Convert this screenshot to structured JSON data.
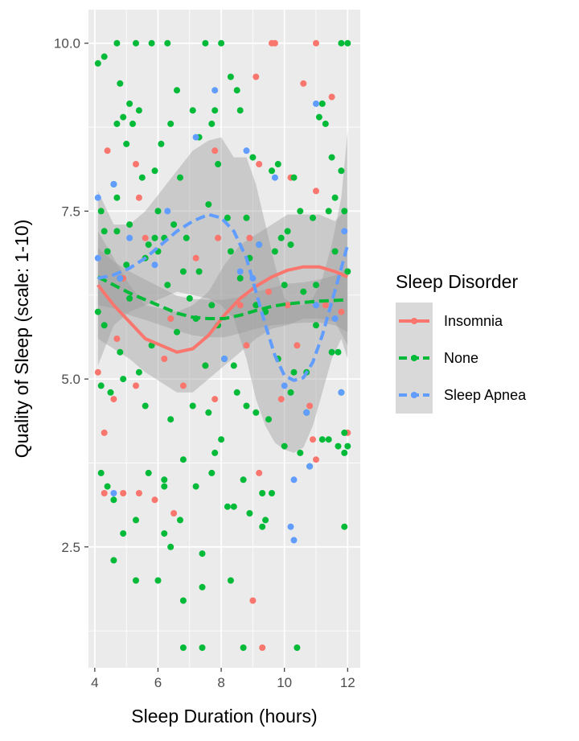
{
  "chart_data": {
    "type": "scatter",
    "title": "",
    "xlabel": "Sleep Duration (hours)",
    "ylabel": "Quality of Sleep (scale: 1-10)",
    "xlim": [
      3.8,
      12.4
    ],
    "ylim": [
      0.7,
      10.5
    ],
    "x_ticks": [
      4,
      6,
      8,
      10,
      12
    ],
    "x_tick_labels": [
      "4",
      "6",
      "8",
      "10",
      "12"
    ],
    "y_ticks": [
      2.5,
      5.0,
      7.5,
      10.0
    ],
    "y_tick_labels": [
      "2.5",
      "5.0",
      "7.5",
      "10.0"
    ],
    "grid": true,
    "panel_background": "#ebebeb",
    "legend": {
      "title": "Sleep Disorder",
      "position": "right",
      "entries": [
        "Insomnia",
        "None",
        "Sleep Apnea"
      ]
    },
    "series": [
      {
        "name": "Insomnia",
        "color": "#f8766d",
        "line_style": "solid",
        "smooth": {
          "x": [
            4.1,
            4.6,
            5.1,
            5.6,
            6.1,
            6.6,
            7.1,
            7.6,
            8.1,
            8.6,
            9.1,
            9.6,
            10.1,
            10.6,
            11.1,
            11.6,
            12.0
          ],
          "y": [
            6.4,
            6.1,
            5.85,
            5.6,
            5.5,
            5.4,
            5.45,
            5.65,
            5.95,
            6.2,
            6.38,
            6.52,
            6.62,
            6.67,
            6.67,
            6.6,
            6.52
          ],
          "band_lower": [
            5.6,
            5.45,
            5.3,
            5.1,
            4.95,
            4.8,
            4.8,
            5.0,
            5.2,
            5.4,
            5.6,
            5.75,
            5.8,
            5.9,
            5.9,
            5.85,
            5.5
          ],
          "band_upper": [
            7.2,
            6.8,
            6.4,
            6.1,
            6.05,
            6.0,
            6.1,
            6.3,
            6.7,
            7.0,
            7.15,
            7.3,
            7.45,
            7.45,
            7.45,
            7.35,
            7.55
          ]
        },
        "points": [
          [
            4.1,
            5.1
          ],
          [
            4.3,
            3.3
          ],
          [
            4.3,
            4.2
          ],
          [
            4.4,
            8.4
          ],
          [
            4.6,
            4.7
          ],
          [
            4.7,
            5.6
          ],
          [
            4.9,
            6.5
          ],
          [
            4.9,
            3.3
          ],
          [
            5.3,
            8.2
          ],
          [
            5.4,
            7.7
          ],
          [
            5.3,
            4.9
          ],
          [
            5.4,
            3.3
          ],
          [
            5.6,
            7.1
          ],
          [
            5.9,
            3.2
          ],
          [
            6.2,
            5.3
          ],
          [
            6.4,
            5.9
          ],
          [
            6.5,
            3.0
          ],
          [
            6.8,
            4.9
          ],
          [
            7.2,
            6.8
          ],
          [
            7.5,
            5.2
          ],
          [
            7.8,
            4.7
          ],
          [
            7.8,
            8.4
          ],
          [
            7.9,
            7.1
          ],
          [
            8.6,
            6.1
          ],
          [
            8.8,
            5.5
          ],
          [
            8.9,
            7.1
          ],
          [
            9.0,
            1.7
          ],
          [
            9.1,
            9.5
          ],
          [
            9.2,
            8.2
          ],
          [
            9.2,
            3.6
          ],
          [
            9.3,
            1.0
          ],
          [
            9.5,
            6.3
          ],
          [
            9.6,
            10.0
          ],
          [
            9.7,
            10.0
          ],
          [
            9.9,
            4.7
          ],
          [
            10.1,
            6.1
          ],
          [
            10.2,
            8.0
          ],
          [
            10.4,
            5.5
          ],
          [
            10.6,
            9.4
          ],
          [
            10.8,
            4.6
          ],
          [
            10.9,
            4.1
          ],
          [
            11.0,
            7.8
          ],
          [
            11.0,
            10.0
          ],
          [
            11.0,
            3.8
          ],
          [
            11.3,
            6.1
          ],
          [
            11.5,
            9.2
          ],
          [
            11.8,
            6.0
          ],
          [
            12.0,
            4.2
          ]
        ]
      },
      {
        "name": "None",
        "color": "#00ba38",
        "line_style": "dashed",
        "smooth": {
          "x": [
            4.1,
            4.6,
            5.1,
            5.6,
            6.1,
            6.6,
            7.1,
            7.6,
            8.1,
            8.6,
            9.1,
            9.6,
            10.1,
            10.6,
            11.1,
            11.6,
            12.0
          ],
          "y": [
            6.52,
            6.4,
            6.28,
            6.18,
            6.08,
            5.98,
            5.92,
            5.9,
            5.9,
            5.95,
            6.02,
            6.08,
            6.12,
            6.14,
            6.16,
            6.17,
            6.18
          ],
          "band_lower": [
            6.1,
            6.05,
            5.95,
            5.88,
            5.8,
            5.72,
            5.65,
            5.62,
            5.62,
            5.68,
            5.75,
            5.8,
            5.82,
            5.84,
            5.84,
            5.8,
            5.7
          ],
          "band_upper": [
            6.95,
            6.75,
            6.6,
            6.48,
            6.36,
            6.24,
            6.19,
            6.18,
            6.18,
            6.22,
            6.3,
            6.36,
            6.42,
            6.44,
            6.48,
            6.54,
            6.66
          ]
        },
        "points": [
          [
            4.1,
            9.7
          ],
          [
            4.1,
            6.0
          ],
          [
            4.2,
            7.5
          ],
          [
            4.2,
            3.6
          ],
          [
            4.2,
            4.9
          ],
          [
            4.3,
            9.8
          ],
          [
            4.3,
            7.2
          ],
          [
            4.3,
            5.8
          ],
          [
            4.4,
            6.9
          ],
          [
            4.4,
            3.4
          ],
          [
            4.5,
            4.8
          ],
          [
            4.6,
            2.3
          ],
          [
            4.6,
            3.2
          ],
          [
            4.6,
            7.9
          ],
          [
            4.7,
            7.7
          ],
          [
            4.7,
            8.8
          ],
          [
            4.7,
            10.0
          ],
          [
            4.7,
            7.2
          ],
          [
            4.8,
            9.4
          ],
          [
            4.8,
            5.4
          ],
          [
            4.8,
            6.5
          ],
          [
            4.9,
            8.9
          ],
          [
            4.9,
            2.7
          ],
          [
            4.9,
            5.0
          ],
          [
            5.0,
            8.5
          ],
          [
            5.0,
            6.7
          ],
          [
            5.1,
            9.1
          ],
          [
            5.1,
            7.3
          ],
          [
            5.1,
            6.2
          ],
          [
            5.2,
            8.8
          ],
          [
            5.3,
            10.0
          ],
          [
            5.3,
            2.9
          ],
          [
            5.3,
            2.0
          ],
          [
            5.4,
            9.0
          ],
          [
            5.4,
            5.1
          ],
          [
            5.5,
            8.0
          ],
          [
            5.6,
            4.6
          ],
          [
            5.6,
            6.8
          ],
          [
            5.7,
            7.0
          ],
          [
            5.7,
            3.6
          ],
          [
            5.8,
            10.0
          ],
          [
            5.8,
            5.5
          ],
          [
            5.9,
            8.1
          ],
          [
            5.9,
            7.1
          ],
          [
            6.0,
            7.5
          ],
          [
            6.0,
            6.9
          ],
          [
            6.0,
            2.0
          ],
          [
            6.1,
            8.5
          ],
          [
            6.2,
            3.4
          ],
          [
            6.2,
            3.5
          ],
          [
            6.2,
            2.7
          ],
          [
            6.2,
            7.1
          ],
          [
            6.3,
            10.0
          ],
          [
            6.3,
            6.4
          ],
          [
            6.4,
            8.8
          ],
          [
            6.4,
            4.4
          ],
          [
            6.4,
            2.5
          ],
          [
            6.5,
            7.3
          ],
          [
            6.6,
            9.3
          ],
          [
            6.6,
            5.7
          ],
          [
            6.7,
            8.0
          ],
          [
            6.7,
            2.9
          ],
          [
            6.8,
            6.6
          ],
          [
            6.8,
            1.7
          ],
          [
            6.8,
            3.8
          ],
          [
            6.8,
            1.0
          ],
          [
            6.9,
            7.1
          ],
          [
            7.0,
            6.2
          ],
          [
            7.1,
            9.0
          ],
          [
            7.1,
            4.6
          ],
          [
            7.2,
            5.9
          ],
          [
            7.2,
            3.4
          ],
          [
            7.3,
            8.6
          ],
          [
            7.3,
            6.6
          ],
          [
            7.4,
            2.4
          ],
          [
            7.4,
            1.9
          ],
          [
            7.4,
            1.0
          ],
          [
            7.5,
            10.0
          ],
          [
            7.5,
            5.2
          ],
          [
            7.6,
            4.5
          ],
          [
            7.6,
            7.6
          ],
          [
            7.7,
            3.6
          ],
          [
            7.7,
            6.1
          ],
          [
            7.7,
            8.8
          ],
          [
            7.8,
            9.0
          ],
          [
            7.8,
            3.9
          ],
          [
            7.9,
            5.8
          ],
          [
            7.9,
            8.2
          ],
          [
            8.0,
            10.0
          ],
          [
            8.0,
            4.1
          ],
          [
            8.1,
            5.3
          ],
          [
            8.2,
            7.4
          ],
          [
            8.2,
            3.1
          ],
          [
            8.3,
            6.9
          ],
          [
            8.3,
            2.0
          ],
          [
            8.3,
            9.5
          ],
          [
            8.4,
            3.1
          ],
          [
            8.4,
            5.2
          ],
          [
            8.5,
            9.3
          ],
          [
            8.5,
            4.8
          ],
          [
            8.6,
            6.5
          ],
          [
            8.6,
            9.0
          ],
          [
            8.7,
            3.5
          ],
          [
            8.7,
            1.0
          ],
          [
            8.8,
            7.4
          ],
          [
            8.8,
            4.6
          ],
          [
            8.9,
            3.0
          ],
          [
            8.9,
            6.8
          ],
          [
            9.0,
            8.3
          ],
          [
            9.1,
            4.5
          ],
          [
            9.1,
            6.1
          ],
          [
            9.2,
            7.0
          ],
          [
            9.3,
            2.8
          ],
          [
            9.3,
            3.3
          ],
          [
            9.4,
            6.0
          ],
          [
            9.4,
            2.9
          ],
          [
            9.5,
            4.4
          ],
          [
            9.6,
            3.3
          ],
          [
            9.6,
            8.1
          ],
          [
            9.7,
            6.9
          ],
          [
            9.8,
            8.2
          ],
          [
            9.8,
            5.3
          ],
          [
            9.9,
            7.1
          ],
          [
            10.0,
            6.4
          ],
          [
            10.0,
            4.0
          ],
          [
            10.1,
            7.2
          ],
          [
            10.2,
            4.8
          ],
          [
            10.2,
            7.0
          ],
          [
            10.3,
            5.1
          ],
          [
            10.3,
            8.0
          ],
          [
            10.4,
            1.0
          ],
          [
            10.5,
            7.5
          ],
          [
            10.5,
            3.9
          ],
          [
            10.6,
            6.3
          ],
          [
            10.7,
            5.1
          ],
          [
            10.7,
            4.5
          ],
          [
            10.8,
            3.7
          ],
          [
            10.9,
            7.4
          ],
          [
            11.0,
            5.8
          ],
          [
            11.0,
            6.4
          ],
          [
            11.1,
            8.9
          ],
          [
            11.2,
            4.1
          ],
          [
            11.2,
            9.1
          ],
          [
            11.3,
            8.8
          ],
          [
            11.4,
            7.5
          ],
          [
            11.4,
            4.1
          ],
          [
            11.5,
            8.3
          ],
          [
            11.5,
            5.4
          ],
          [
            11.6,
            6.9
          ],
          [
            11.6,
            7.7
          ],
          [
            11.7,
            5.4
          ],
          [
            11.7,
            4.0
          ],
          [
            11.8,
            10.0
          ],
          [
            11.8,
            8.1
          ],
          [
            11.9,
            4.2
          ],
          [
            11.9,
            2.8
          ],
          [
            11.9,
            7.5
          ],
          [
            12.0,
            6.6
          ],
          [
            12.0,
            4.0
          ],
          [
            12.0,
            10.0
          ],
          [
            11.9,
            3.9
          ],
          [
            11.8,
            4.8
          ]
        ]
      },
      {
        "name": "Sleep Apnea",
        "color": "#619cff",
        "line_style": "dashed",
        "smooth": {
          "x": [
            4.1,
            4.6,
            5.1,
            5.6,
            6.1,
            6.6,
            7.1,
            7.6,
            8.0,
            8.4,
            8.8,
            9.1,
            9.4,
            9.7,
            10.0,
            10.3,
            10.6,
            10.9,
            11.2,
            11.5,
            11.8,
            12.0
          ],
          "y": [
            6.5,
            6.55,
            6.65,
            6.8,
            7.0,
            7.2,
            7.35,
            7.45,
            7.4,
            7.2,
            6.8,
            6.3,
            5.8,
            5.35,
            5.05,
            4.98,
            5.02,
            5.25,
            5.65,
            6.15,
            6.65,
            7.0
          ],
          "band_lower": [
            5.2,
            5.8,
            6.0,
            6.1,
            6.2,
            6.3,
            6.25,
            6.2,
            6.1,
            5.9,
            5.3,
            4.7,
            4.3,
            4.05,
            3.95,
            3.9,
            3.98,
            4.3,
            4.8,
            5.3,
            5.6,
            5.3
          ],
          "band_upper": [
            7.8,
            7.3,
            7.3,
            7.5,
            7.8,
            8.1,
            8.4,
            8.55,
            8.6,
            8.3,
            8.3,
            7.9,
            7.3,
            6.7,
            6.2,
            6.1,
            6.1,
            6.2,
            6.5,
            7.0,
            7.7,
            8.7
          ]
        },
        "points": [
          [
            4.1,
            7.7
          ],
          [
            4.1,
            6.8
          ],
          [
            4.6,
            7.9
          ],
          [
            4.6,
            3.3
          ],
          [
            4.8,
            6.5
          ],
          [
            5.1,
            7.1
          ],
          [
            5.9,
            6.7
          ],
          [
            6.3,
            7.5
          ],
          [
            7.2,
            8.6
          ],
          [
            7.8,
            9.3
          ],
          [
            8.1,
            5.3
          ],
          [
            8.6,
            6.6
          ],
          [
            8.8,
            8.4
          ],
          [
            9.0,
            6.5
          ],
          [
            9.2,
            7.0
          ],
          [
            9.7,
            8.0
          ],
          [
            10.0,
            4.9
          ],
          [
            10.2,
            2.8
          ],
          [
            10.3,
            2.6
          ],
          [
            10.3,
            3.5
          ],
          [
            10.7,
            4.5
          ],
          [
            10.8,
            3.7
          ],
          [
            11.0,
            9.1
          ],
          [
            11.0,
            6.1
          ],
          [
            11.6,
            5.9
          ],
          [
            11.8,
            4.8
          ],
          [
            11.9,
            7.2
          ]
        ]
      }
    ]
  }
}
